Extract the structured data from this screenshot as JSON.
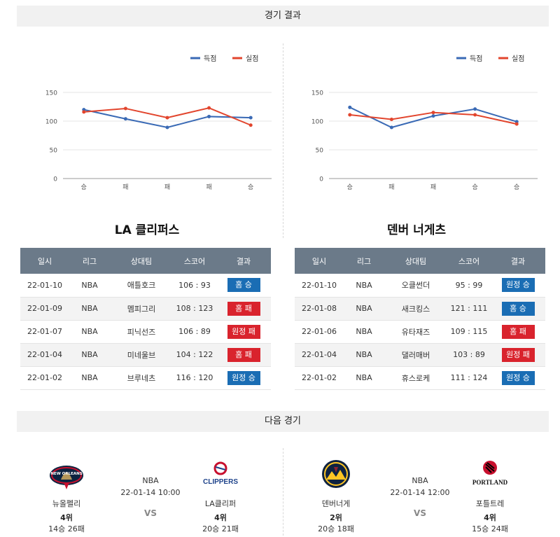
{
  "sections": {
    "results_title": "경기 결과",
    "next_title": "다음 경기"
  },
  "legend": {
    "scored": "득점",
    "conceded": "실점"
  },
  "colors": {
    "scored": "#3a6ab5",
    "conceded": "#e2452d",
    "win": "#1a6db4",
    "loss": "#d9232d",
    "header": "#6b7a89"
  },
  "chart_data": [
    {
      "type": "line",
      "categories": [
        "승",
        "패",
        "패",
        "패",
        "승"
      ],
      "series": [
        {
          "name": "득점",
          "values": [
            120,
            104,
            89,
            108,
            106
          ]
        },
        {
          "name": "실점",
          "values": [
            116,
            122,
            106,
            123,
            93
          ]
        }
      ],
      "yticks": [
        0,
        50,
        100,
        150
      ],
      "ylim": [
        0,
        150
      ],
      "grid": true,
      "legend_position": "top-right"
    },
    {
      "type": "line",
      "categories": [
        "승",
        "패",
        "패",
        "승",
        "승"
      ],
      "series": [
        {
          "name": "득점",
          "values": [
            124,
            89,
            109,
            121,
            99
          ]
        },
        {
          "name": "실점",
          "values": [
            111,
            103,
            115,
            111,
            95
          ]
        }
      ],
      "yticks": [
        0,
        50,
        100,
        150
      ],
      "ylim": [
        0,
        150
      ],
      "grid": true,
      "legend_position": "top-right"
    }
  ],
  "tables": {
    "headers": [
      "일시",
      "리그",
      "상대팀",
      "스코어",
      "결과"
    ],
    "left": {
      "title": "LA 클리퍼스",
      "rows": [
        {
          "date": "22-01-10",
          "league": "NBA",
          "opponent": "애틀호크",
          "score": "106 : 93",
          "result": "홈 승",
          "type": "win"
        },
        {
          "date": "22-01-09",
          "league": "NBA",
          "opponent": "멤피그리",
          "score": "108 : 123",
          "result": "홈 패",
          "type": "loss"
        },
        {
          "date": "22-01-07",
          "league": "NBA",
          "opponent": "피닉선즈",
          "score": "106 : 89",
          "result": "원정 패",
          "type": "loss"
        },
        {
          "date": "22-01-04",
          "league": "NBA",
          "opponent": "미네울브",
          "score": "104 : 122",
          "result": "홈 패",
          "type": "loss"
        },
        {
          "date": "22-01-02",
          "league": "NBA",
          "opponent": "브루네츠",
          "score": "116 : 120",
          "result": "원정 승",
          "type": "win"
        }
      ]
    },
    "right": {
      "title": "덴버 너게츠",
      "rows": [
        {
          "date": "22-01-10",
          "league": "NBA",
          "opponent": "오클썬더",
          "score": "95 : 99",
          "result": "원정 승",
          "type": "win"
        },
        {
          "date": "22-01-08",
          "league": "NBA",
          "opponent": "새크킹스",
          "score": "121 : 111",
          "result": "홈 승",
          "type": "win"
        },
        {
          "date": "22-01-06",
          "league": "NBA",
          "opponent": "유타재즈",
          "score": "109 : 115",
          "result": "홈 패",
          "type": "loss"
        },
        {
          "date": "22-01-04",
          "league": "NBA",
          "opponent": "댈러매버",
          "score": "103 : 89",
          "result": "원정 패",
          "type": "loss"
        },
        {
          "date": "22-01-02",
          "league": "NBA",
          "opponent": "휴스로케",
          "score": "111 : 124",
          "result": "원정 승",
          "type": "win"
        }
      ]
    }
  },
  "next_games": [
    {
      "league": "NBA",
      "datetime": "22-01-14 10:00",
      "vs": "VS",
      "home": {
        "name": "뉴올펠리",
        "rank": "4위",
        "record": "14승 26패",
        "logo": "pelicans-logo",
        "logo_text": "NEW ORLEANS"
      },
      "away": {
        "name": "LA클리퍼",
        "rank": "4위",
        "record": "20승 21패",
        "logo": "clippers-logo",
        "logo_text": "CLIPPERS"
      }
    },
    {
      "league": "NBA",
      "datetime": "22-01-14 12:00",
      "vs": "VS",
      "home": {
        "name": "덴버너게",
        "rank": "2위",
        "record": "20승 18패",
        "logo": "nuggets-logo",
        "logo_text": ""
      },
      "away": {
        "name": "포틀트레",
        "rank": "4위",
        "record": "15승 24패",
        "logo": "blazers-logo",
        "logo_text": "PORTLAND"
      }
    }
  ]
}
